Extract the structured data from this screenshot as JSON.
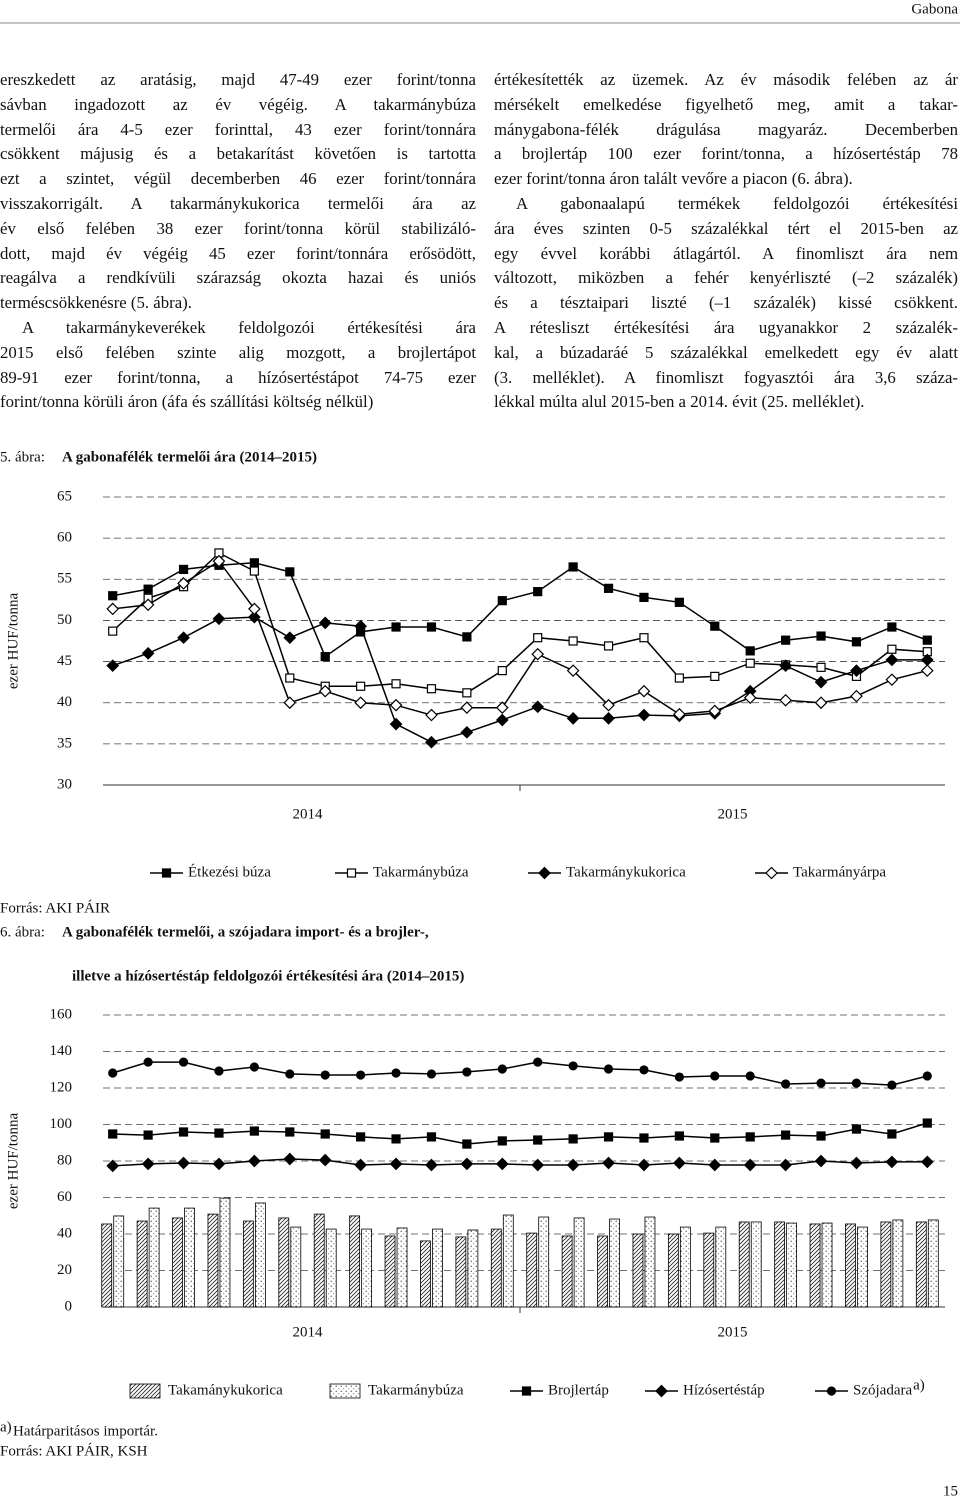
{
  "header": {
    "title": "Gabona"
  },
  "columns": [
    [
      [
        "ereszkedett az aratásig, majd 47-49 ezer forint/tonna",
        "sávban ingadozott az év végéig. A takarmánybúza",
        "termelői ára 4-5 ezer forinttal, 43 ezer forint/tonnára",
        "csökkent májusig és a betakarítást követően is tartotta",
        "ezt a szintet, végül decemberben 46 ezer forint/tonnára",
        "visszakorrigált. A takarmánykukorica termelői ára az",
        "év első felében 38 ezer forint/tonna körül stabilizáló-",
        "dott, majd év végéig 45 ezer forint/tonnára erősödött,",
        "reagálva a rendkívüli szárazság okozta hazai és uniós",
        "terméscsökkenésre (5. ábra)."
      ],
      [
        "A takarmánykeverékek feldolgozói értékesítési ára",
        "2015 első felében szinte alig mozgott, a brojlertápot",
        "89-91 ezer forint/tonna, a hízósertéstápot 74-75 ezer",
        "forint/tonna körüli áron (áfa és szállítási költség nélkül)"
      ]
    ],
    [
      [
        "értékesítették az üzemek. Az év második felében az ár",
        "mérsékelt emelkedése figyelhető meg, amit a takar-",
        "mánygabona-félék drágulása magyaráz. Decemberben",
        "a brojlertáp 100 ezer forint/tonna, a hízósertéstáp 78",
        "ezer forint/tonna áron talált vevőre a piacon (6. ábra)."
      ],
      [
        "A gabonaalapú termékek feldolgozói értékesítési",
        "ára éves szinten 0-5 százalékkal tért el 2015-ben az",
        "egy évvel korábbi átlagártól. A finomliszt ára nem",
        "változott, miközben a fehér kenyérliszté (–2 százalék)",
        "és a tésztaipari liszté (–1 százalék) kissé csökkent.",
        "A rétesliszt értékesítési ára ugyanakkor 2 százalék-",
        "kal, a búzadaráé 5 százalékkal emelkedett egy év alatt",
        "(3. melléklet). A finomliszt fogyasztói ára 3,6 száza-",
        "lékkal múlta alul 2015-ben a 2014. évit (25. melléklet)."
      ]
    ]
  ],
  "chart_data": [
    {
      "type": "line",
      "label": "5. ábra:",
      "title": "A gabonafélék termelői ára (2014–2015)",
      "y_label": "ezer HUF/tonna",
      "categories": [
        null,
        null,
        null,
        null,
        null,
        null,
        null,
        null,
        null,
        null,
        null,
        null,
        null,
        null,
        null,
        null,
        null,
        null,
        null,
        null,
        null,
        null,
        null,
        null
      ],
      "group_labels": [
        "2014",
        "2015"
      ],
      "ylim": [
        30,
        65
      ],
      "yticks": [
        30,
        35,
        40,
        45,
        50,
        55,
        60,
        65
      ],
      "grid": true,
      "series": [
        {
          "name": "Étkezési búza",
          "color": "#000000",
          "marker": "square",
          "filled": true,
          "values": [
            53.0,
            53.8,
            56.2,
            56.7,
            57.0,
            55.9,
            45.6,
            48.6,
            49.2,
            49.2,
            48.0,
            52.4,
            53.5,
            56.5,
            53.9,
            52.8,
            52.2,
            49.3,
            46.3,
            47.6,
            48.1,
            47.4,
            49.2,
            47.6
          ]
        },
        {
          "name": "Takarmánybúza",
          "color": "#000000",
          "marker": "square",
          "filled": false,
          "values": [
            48.7,
            52.7,
            54.1,
            58.2,
            56.0,
            43.0,
            42.0,
            42.0,
            42.3,
            41.7,
            41.2,
            43.9,
            47.9,
            47.5,
            46.9,
            47.9,
            43.0,
            43.2,
            44.8,
            44.6,
            44.3,
            43.2,
            46.5,
            46.2
          ]
        },
        {
          "name": "Takarmánykukorica",
          "color": "#000000",
          "marker": "diamond",
          "filled": true,
          "values": [
            44.5,
            46.0,
            47.9,
            50.2,
            50.4,
            47.9,
            49.7,
            49.3,
            37.4,
            35.2,
            36.4,
            37.9,
            39.5,
            38.1,
            38.1,
            38.5,
            38.4,
            38.7,
            41.4,
            44.5,
            42.5,
            43.9,
            45.2,
            45.2
          ]
        },
        {
          "name": "Takarmányárpa",
          "color": "#000000",
          "marker": "diamond",
          "filled": false,
          "values": [
            51.4,
            51.9,
            54.5,
            57.2,
            51.4,
            40.0,
            41.4,
            40.0,
            39.7,
            38.5,
            39.4,
            39.4,
            45.9,
            43.9,
            39.7,
            41.4,
            38.6,
            39.0,
            40.6,
            40.3,
            40.0,
            40.8,
            42.8,
            43.9
          ]
        }
      ],
      "source": "Forrás: AKI PÁIR"
    },
    {
      "type": "combo",
      "label": "6. ábra:",
      "title": [
        "A gabonafélék termelői, a szójadara import- és a brojler-,",
        "illetve a hízósertéstáp feldolgozói értékesítési ára (2014–2015)"
      ],
      "y_label": "ezer HUF/tonna",
      "categories": [
        null,
        null,
        null,
        null,
        null,
        null,
        null,
        null,
        null,
        null,
        null,
        null,
        null,
        null,
        null,
        null,
        null,
        null,
        null,
        null,
        null,
        null,
        null,
        null
      ],
      "group_labels": [
        "2014",
        "2015"
      ],
      "ylim": [
        0,
        160
      ],
      "yticks": [
        0,
        20,
        40,
        60,
        80,
        100,
        120,
        140,
        160
      ],
      "grid": true,
      "series": [
        {
          "name": "Takamánykukorica",
          "color": "#000000",
          "kind": "bar",
          "pattern": "hatch",
          "values": [
            45.5,
            47.1,
            48.8,
            50.9,
            47.1,
            48.8,
            50.9,
            49.9,
            38.9,
            36.2,
            38.4,
            42.7,
            40.5,
            38.9,
            38.9,
            40.0,
            40.0,
            40.5,
            46.6,
            46.6,
            45.5,
            45.5,
            46.6,
            46.6
          ]
        },
        {
          "name": "Takarmánybúza",
          "color": "#000000",
          "kind": "bar",
          "pattern": "dots",
          "values": [
            49.9,
            54.2,
            54.2,
            59.7,
            57.0,
            43.8,
            42.7,
            42.7,
            43.3,
            42.7,
            42.2,
            50.4,
            49.3,
            48.8,
            48.2,
            49.3,
            43.8,
            43.8,
            46.6,
            46.0,
            46.0,
            43.8,
            47.7,
            47.7
          ]
        },
        {
          "name": "Brojlertáp",
          "color": "#000000",
          "kind": "line",
          "marker": "square",
          "filled": true,
          "values": [
            94.8,
            94.2,
            95.9,
            95.3,
            96.4,
            95.9,
            94.8,
            93.2,
            92.1,
            93.2,
            89.3,
            91.0,
            91.5,
            92.1,
            93.2,
            92.6,
            93.7,
            92.6,
            93.2,
            94.2,
            93.7,
            97.5,
            94.8,
            100.8
          ]
        },
        {
          "name": "Hízósertéstáp",
          "color": "#000000",
          "kind": "line",
          "marker": "diamond",
          "filled": true,
          "values": [
            77.3,
            78.4,
            78.9,
            78.4,
            80.0,
            81.1,
            80.5,
            77.8,
            78.4,
            77.8,
            78.4,
            78.4,
            77.8,
            77.8,
            78.9,
            77.8,
            78.9,
            77.8,
            77.8,
            77.8,
            80.0,
            78.9,
            79.5,
            79.5
          ]
        },
        {
          "name": "Szójadara",
          "name_note": "a)",
          "color": "#000000",
          "kind": "line",
          "marker": "circle",
          "filled": true,
          "values": [
            128.2,
            134.2,
            134.2,
            129.3,
            131.5,
            127.7,
            127.1,
            127.1,
            128.2,
            127.7,
            128.8,
            130.4,
            134.2,
            132.1,
            130.4,
            129.9,
            126.0,
            126.6,
            126.6,
            122.2,
            122.7,
            122.7,
            121.6,
            126.6
          ]
        }
      ],
      "note_marker": "a)",
      "note": "Határparitásos importár.",
      "source": "Forrás: AKI PÁIR, KSH"
    }
  ],
  "page_number": "15"
}
